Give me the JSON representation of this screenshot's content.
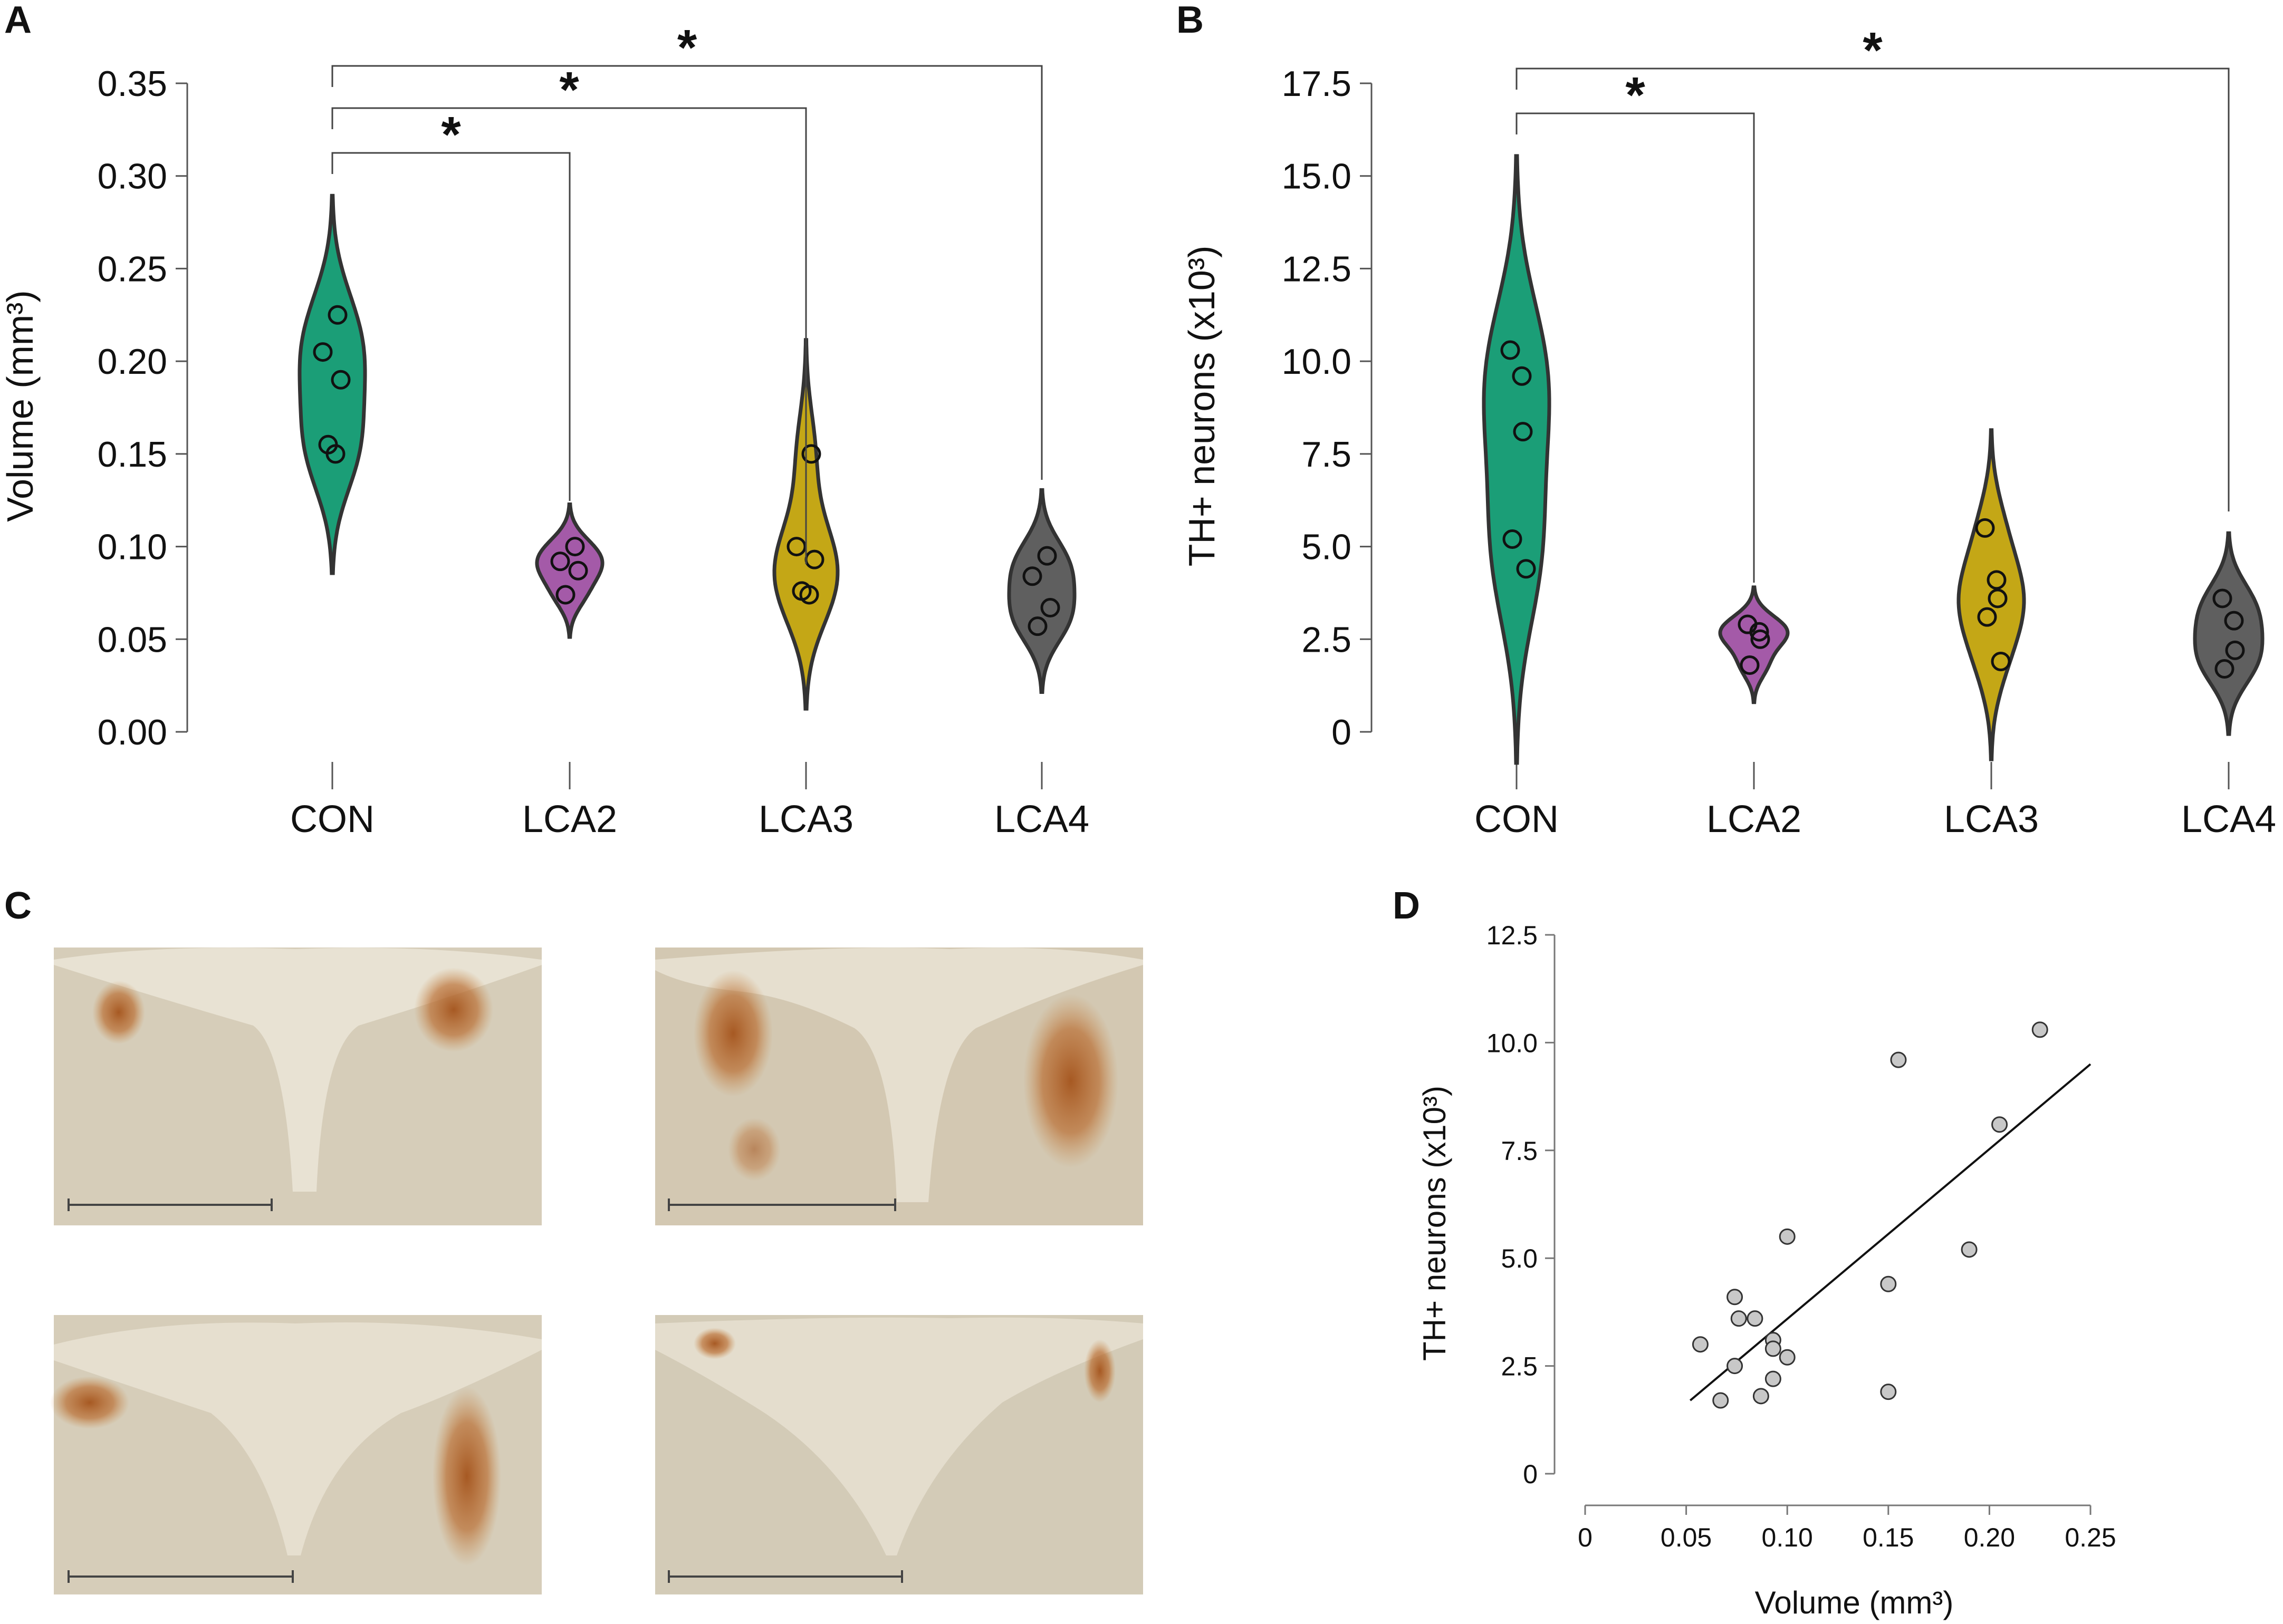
{
  "panel_labels": {
    "a": "A",
    "b": "B",
    "c": "C",
    "d": "D"
  },
  "colors": {
    "CON": "#1b9e77",
    "LCA2": "#a45aa8",
    "LCA3": "#c4a716",
    "LCA4": "#5f5f5f",
    "outline": "#333333",
    "scatter_fill": "#c8c8c8"
  },
  "chart_data": [
    {
      "panel": "A",
      "type": "violin",
      "categories": [
        "CON",
        "LCA2",
        "LCA3",
        "LCA4"
      ],
      "ylabel": "Volume (mm³)",
      "ylim": [
        0,
        0.35
      ],
      "yticks": [
        "0.00",
        "0.05",
        "0.10",
        "0.15",
        "0.20",
        "0.25",
        "0.30",
        "0.35"
      ],
      "series": [
        {
          "name": "CON",
          "values": [
            0.225,
            0.205,
            0.19,
            0.155,
            0.15
          ]
        },
        {
          "name": "LCA2",
          "values": [
            0.1,
            0.092,
            0.087,
            0.074
          ]
        },
        {
          "name": "LCA3",
          "values": [
            0.15,
            0.1,
            0.093,
            0.076,
            0.074
          ]
        },
        {
          "name": "LCA4",
          "values": [
            0.095,
            0.084,
            0.067,
            0.057
          ]
        }
      ],
      "comparisons": [
        {
          "from": "CON",
          "to": "LCA2",
          "label": "*"
        },
        {
          "from": "CON",
          "to": "LCA3",
          "label": "*"
        },
        {
          "from": "CON",
          "to": "LCA4",
          "label": "*"
        }
      ]
    },
    {
      "panel": "B",
      "type": "violin",
      "categories": [
        "CON",
        "LCA2",
        "LCA3",
        "LCA4"
      ],
      "ylabel": "TH+ neurons (x10³)",
      "ylim": [
        0,
        17.5
      ],
      "yticks": [
        "0",
        "2.5",
        "5.0",
        "7.5",
        "10.0",
        "12.5",
        "15.0",
        "17.5"
      ],
      "series": [
        {
          "name": "CON",
          "values": [
            10.3,
            9.6,
            8.1,
            5.2,
            4.4
          ]
        },
        {
          "name": "LCA2",
          "values": [
            2.9,
            2.7,
            2.5,
            1.8
          ]
        },
        {
          "name": "LCA3",
          "values": [
            5.5,
            4.1,
            3.6,
            3.1,
            1.9
          ]
        },
        {
          "name": "LCA4",
          "values": [
            3.6,
            3.0,
            2.2,
            1.7
          ]
        }
      ],
      "comparisons": [
        {
          "from": "CON",
          "to": "LCA2",
          "label": "*"
        },
        {
          "from": "CON",
          "to": "LCA4",
          "label": "*"
        }
      ]
    },
    {
      "panel": "D",
      "type": "scatter",
      "xlabel": "Volume (mm³)",
      "ylabel": "TH+ neurons (x10³)",
      "xlim": [
        0,
        0.25
      ],
      "ylim": [
        0,
        12.5
      ],
      "xticks": [
        "0",
        "0.05",
        "0.10",
        "0.15",
        "0.20",
        "0.25"
      ],
      "yticks": [
        "0",
        "2.5",
        "5.0",
        "7.5",
        "10.0",
        "12.5"
      ],
      "points": [
        {
          "x": 0.225,
          "y": 10.3
        },
        {
          "x": 0.205,
          "y": 8.1
        },
        {
          "x": 0.19,
          "y": 5.2
        },
        {
          "x": 0.155,
          "y": 9.6
        },
        {
          "x": 0.15,
          "y": 4.4
        },
        {
          "x": 0.15,
          "y": 1.9
        },
        {
          "x": 0.1,
          "y": 5.5
        },
        {
          "x": 0.1,
          "y": 2.7
        },
        {
          "x": 0.093,
          "y": 3.1
        },
        {
          "x": 0.093,
          "y": 2.9
        },
        {
          "x": 0.093,
          "y": 2.2
        },
        {
          "x": 0.087,
          "y": 1.8
        },
        {
          "x": 0.084,
          "y": 3.6
        },
        {
          "x": 0.076,
          "y": 3.6
        },
        {
          "x": 0.074,
          "y": 4.1
        },
        {
          "x": 0.074,
          "y": 2.5
        },
        {
          "x": 0.067,
          "y": 1.7
        },
        {
          "x": 0.057,
          "y": 3.0
        }
      ],
      "regression": {
        "x": [
          0.052,
          0.25
        ],
        "y": [
          1.7,
          9.5
        ]
      }
    }
  ]
}
